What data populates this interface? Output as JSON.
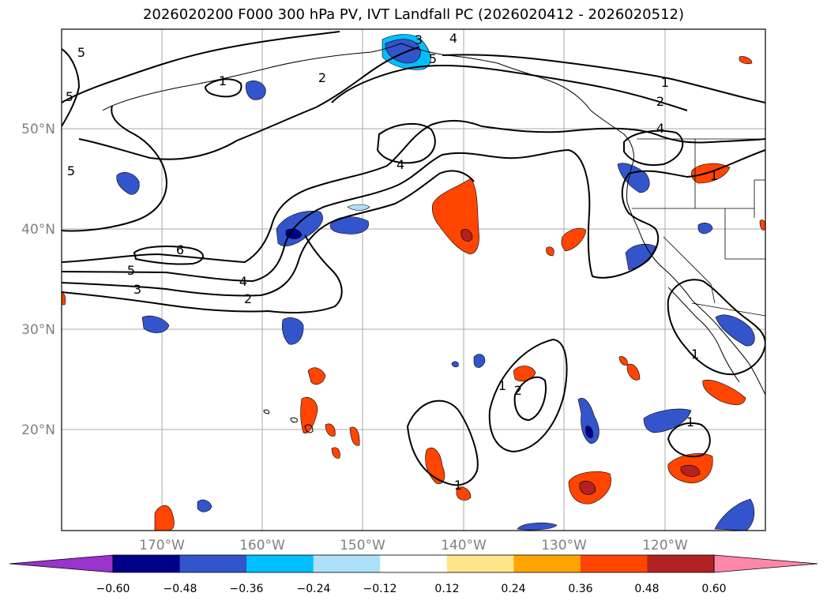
{
  "title": "2026020200 F000 300 hPa PV, IVT Landfall PC (2026020412 - 2026020512)",
  "map": {
    "lon_labels": [
      "170°W",
      "160°W",
      "150°W",
      "140°W",
      "130°W",
      "120°W"
    ],
    "lat_labels": [
      "50°N",
      "40°N",
      "30°N",
      "20°N"
    ],
    "pv_contour_labels": [
      "5",
      "5",
      "5",
      "1",
      "2",
      "3",
      "4",
      "5",
      "1",
      "2",
      "4",
      "4",
      "6",
      "5",
      "3",
      "4",
      "2",
      "1",
      "1",
      "2",
      "1",
      "1",
      "1"
    ]
  },
  "colorbar": {
    "colors": [
      "#9933cc",
      "#00008b",
      "#3355cc",
      "#00bfff",
      "#aee0fa",
      "#ffffff",
      "#fde68a",
      "#ffa500",
      "#ff4500",
      "#b22222",
      "#ff88aa"
    ],
    "tick_labels": [
      "−0.60",
      "−0.48",
      "−0.36",
      "−0.24",
      "−0.12",
      "0.12",
      "0.24",
      "0.36",
      "0.48",
      "0.60"
    ]
  }
}
